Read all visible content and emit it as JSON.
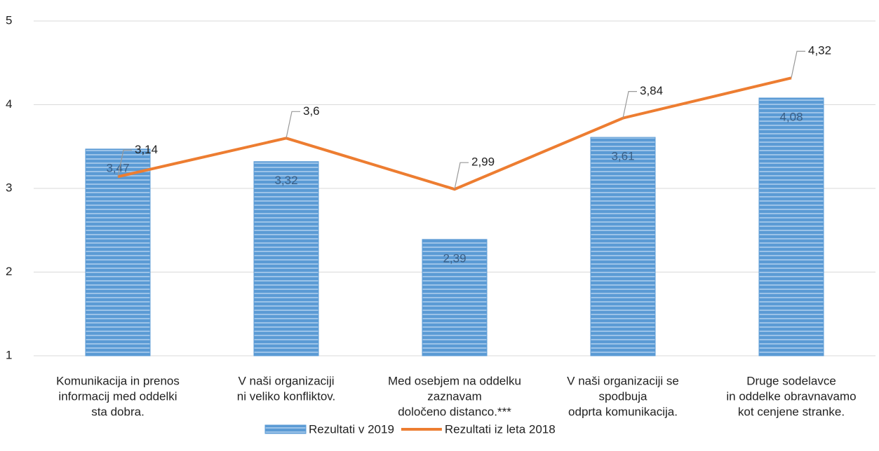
{
  "chart_data": {
    "type": "bar",
    "categories": [
      [
        "Komunikacija in prenos",
        "informacij med oddelki",
        "sta dobra."
      ],
      [
        "V naši organizaciji",
        "ni veliko konfliktov."
      ],
      [
        "Med osebjem na oddelku",
        "zaznavam",
        "določeno distanco.***"
      ],
      [
        "V naši organizaciji se",
        "spodbuja",
        "odprta komunikacija."
      ],
      [
        "Druge sodelavce",
        "in oddelke obravnavamo",
        "kot cenjene stranke."
      ]
    ],
    "series": [
      {
        "name": "Rezultati v 2019",
        "type": "bar",
        "color": "#5b9bd5",
        "values": [
          3.47,
          3.32,
          2.39,
          3.61,
          4.08
        ],
        "value_labels": [
          "3,47",
          "3,32",
          "2,39",
          "3,61",
          "4,08"
        ]
      },
      {
        "name": "Rezultati iz leta 2018",
        "type": "line",
        "color": "#ed7d31",
        "values": [
          3.14,
          3.6,
          2.99,
          3.84,
          4.32
        ],
        "value_labels": [
          "3,14",
          "3,6",
          "2,99",
          "3,84",
          "4,32"
        ]
      }
    ],
    "ylim": [
      1,
      5
    ],
    "yticks": [
      1,
      2,
      3,
      4,
      5
    ],
    "grid": true,
    "legend": "bottom"
  }
}
